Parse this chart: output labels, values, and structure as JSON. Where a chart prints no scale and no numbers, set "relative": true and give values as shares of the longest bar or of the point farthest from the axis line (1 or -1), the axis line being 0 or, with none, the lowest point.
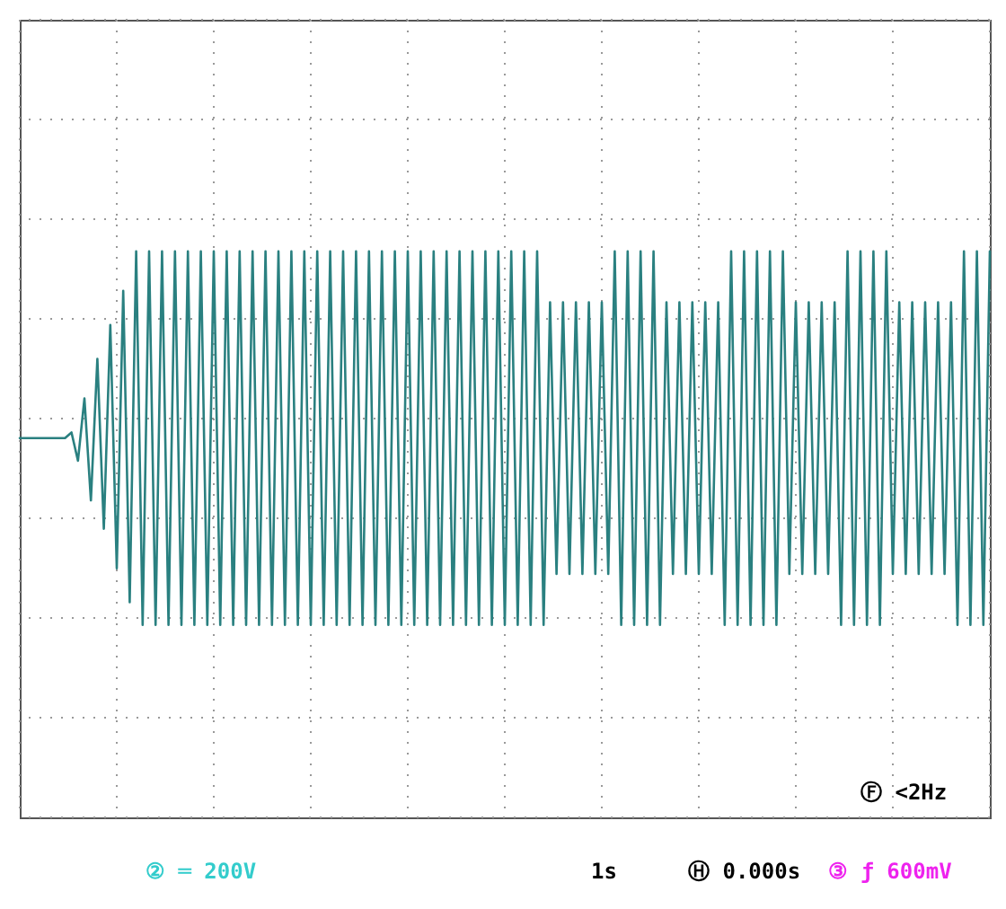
{
  "chart_data": {
    "type": "line",
    "relative": true,
    "grid": true,
    "categories": [
      null,
      null,
      null,
      null,
      null,
      null,
      null,
      null,
      null,
      null,
      null,
      null,
      null,
      null,
      null,
      null,
      null,
      null,
      null,
      null,
      null,
      null,
      null,
      null,
      null,
      null,
      null,
      null,
      null,
      null,
      null,
      null,
      null,
      null,
      null,
      null,
      null,
      null,
      null,
      null,
      null,
      null,
      null,
      null,
      null,
      null,
      null,
      null,
      null,
      null,
      null,
      null,
      null,
      null,
      null,
      null,
      null,
      null,
      null,
      null,
      null,
      null,
      null,
      null,
      null,
      null,
      null,
      null,
      null,
      null,
      null,
      null,
      null,
      null,
      null,
      null,
      null,
      null,
      null,
      null,
      null,
      null,
      null,
      null,
      null,
      null,
      null,
      null,
      null,
      null,
      null,
      null,
      null,
      null,
      null,
      null,
      null,
      null,
      null,
      null,
      null,
      null,
      null,
      null,
      null,
      null,
      null,
      null,
      null,
      null,
      null,
      null,
      null,
      null,
      null,
      null,
      null,
      null,
      null,
      null,
      null,
      null,
      null,
      null,
      null,
      null,
      null,
      null,
      null,
      null,
      null,
      null,
      null,
      null,
      null,
      null,
      null,
      null,
      null,
      null,
      null,
      null,
      null,
      null,
      null,
      null,
      null,
      null,
      null,
      null,
      null
    ],
    "series": [
      {
        "color": "#2a8080",
        "values": [
          0.67,
          0.67,
          0.67,
          0.67,
          0.67,
          0.67,
          0.67,
          0.67,
          0.68,
          0.63,
          0.74,
          0.56,
          0.81,
          0.51,
          0.87,
          0.44,
          0.93,
          0.38,
          1,
          0.34,
          1,
          0.34,
          1,
          0.34,
          1,
          0.34,
          1,
          0.34,
          1,
          0.34,
          1,
          0.34,
          1,
          0.34,
          1,
          0.34,
          1,
          0.34,
          1,
          0.34,
          1,
          0.34,
          1,
          0.34,
          1,
          0.34,
          1,
          0.34,
          1,
          0.34,
          1,
          0.34,
          1,
          0.34,
          1,
          0.34,
          1,
          0.34,
          1,
          0.34,
          1,
          0.34,
          1,
          0.34,
          1,
          0.34,
          1,
          0.34,
          1,
          0.34,
          1,
          0.34,
          1,
          0.34,
          1,
          0.34,
          1,
          0.34,
          1,
          0.34,
          1,
          0.34,
          0.91,
          0.43,
          0.91,
          0.43,
          0.91,
          0.43,
          0.91,
          0.43,
          0.91,
          0.43,
          1,
          0.34,
          1,
          0.34,
          1,
          0.34,
          1,
          0.34,
          0.91,
          0.43,
          0.91,
          0.43,
          0.91,
          0.43,
          0.91,
          0.43,
          0.91,
          0.34,
          1,
          0.34,
          1,
          0.34,
          1,
          0.34,
          1,
          0.34,
          1,
          0.43,
          0.91,
          0.43,
          0.91,
          0.43,
          0.91,
          0.43,
          0.91,
          0.34,
          1,
          0.34,
          1,
          0.34,
          1,
          0.34,
          1,
          0.43,
          0.91,
          0.43,
          0.91,
          0.43,
          0.91,
          0.43,
          0.91,
          0.43,
          0.91,
          0.34,
          1,
          0.34,
          1,
          0.34,
          1
        ]
      }
    ],
    "annotations": [
      "② ═ 200V",
      "1s",
      "Ⓗ 0.000s",
      "③ ƒ 600mV",
      "Ⓕ <2Hz"
    ]
  }
}
